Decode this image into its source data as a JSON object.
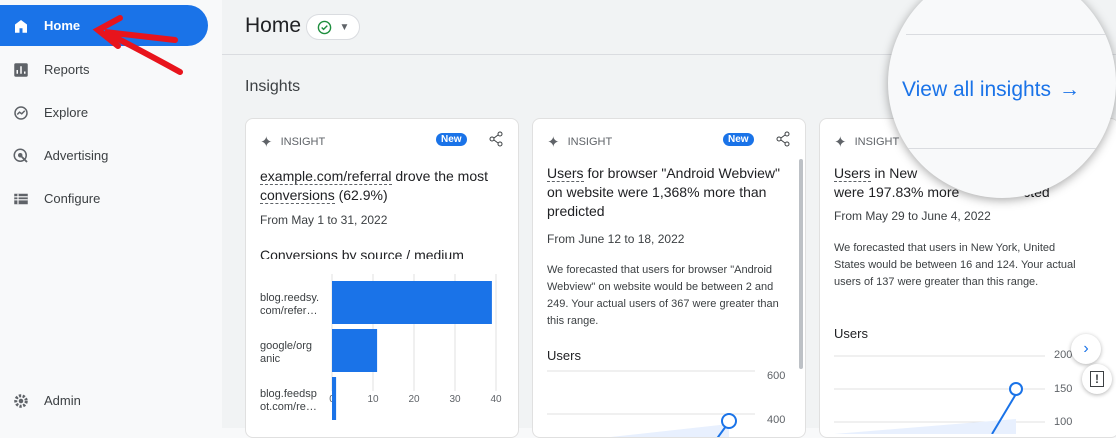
{
  "sidebar": {
    "items": [
      {
        "label": "Home",
        "icon": "home-icon"
      },
      {
        "label": "Reports",
        "icon": "bar-chart-icon"
      },
      {
        "label": "Explore",
        "icon": "explore-icon"
      },
      {
        "label": "Advertising",
        "icon": "advertising-icon"
      },
      {
        "label": "Configure",
        "icon": "list-icon"
      }
    ],
    "admin": "Admin"
  },
  "header": {
    "title": "Home"
  },
  "insights": {
    "label": "Insights",
    "view_all": "View all insights"
  },
  "cards": [
    {
      "tag": "INSIGHT",
      "badge": "New",
      "link1": "example.com/referral",
      "title_rest": " drove the most ",
      "link2": "conversions",
      "title_end": " (62.9%)",
      "date": "From May 1 to 31, 2022",
      "subtitle": "Conversions by source / medium"
    },
    {
      "tag": "INSIGHT",
      "badge": "New",
      "link1": "Users",
      "title_rest": " for browser \"Android Webview\" on website were 1,368% more than predicted",
      "date": "From June 12 to 18, 2022",
      "body": "We forecasted that users for browser \"Android Webview\" on website would be between 2 and 249. Your actual users of 367 were greater than this range.",
      "subtitle": "Users",
      "yticks": [
        "600",
        "400"
      ]
    },
    {
      "tag": "INSIGHT",
      "link1": "Users",
      "title_rest": " in New ",
      "title_line2": "were 197.83% more ",
      "title_end": "cted",
      "date": "From May 29 to June 4, 2022",
      "body": "We forecasted that users in New York, United States would be between 16 and 124. Your actual users of 137 were greater than this range.",
      "subtitle": "Users",
      "yticks": [
        "200",
        "150",
        "100"
      ]
    }
  ],
  "chart_data": {
    "type": "bar",
    "orientation": "horizontal",
    "categories": [
      "blog.reedsy.com/refer…",
      "google/organic",
      "blog.feedspot.com/re…"
    ],
    "labels": [
      [
        "blog.reedsy.",
        "com/refer…"
      ],
      [
        "google/org",
        "anic"
      ],
      [
        "blog.feedsp",
        "ot.com/re…"
      ]
    ],
    "values": [
      39,
      11,
      1
    ],
    "xticks": [
      "0",
      "10",
      "20",
      "30",
      "40"
    ],
    "xlim": [
      0,
      40
    ],
    "grid": true,
    "color": "#1a73e8"
  },
  "colors": {
    "accent": "#1a73e8",
    "annotation": "#e8141c"
  }
}
